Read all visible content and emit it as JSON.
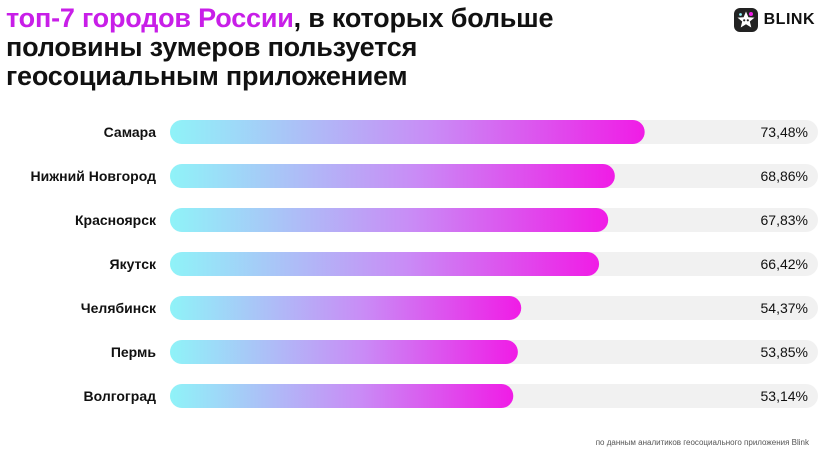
{
  "title": {
    "accent": "топ-7 городов России",
    "rest": ", в которых больше половины зумеров пользуется геосоциальным приложением"
  },
  "brand": {
    "name": "BLINK",
    "logo_icon": "blink-star-logo-icon"
  },
  "colors": {
    "accent": "#c81ee8",
    "bar_start": "#8ff3f8",
    "bar_mid": "#c98cf6",
    "bar_end": "#f01ce6",
    "track": "#f1f1f1"
  },
  "chart_data": {
    "type": "bar",
    "orientation": "horizontal",
    "categories": [
      "Самара",
      "Нижний Новгород",
      "Красноярск",
      "Якутск",
      "Челябинск",
      "Пермь",
      "Волгоград"
    ],
    "values": [
      73.48,
      68.86,
      67.83,
      66.42,
      54.37,
      53.85,
      53.14
    ],
    "value_labels": [
      "73,48%",
      "68,86%",
      "67,83%",
      "66,42%",
      "54,37%",
      "53,85%",
      "53,14%"
    ],
    "xlim": [
      0,
      100
    ],
    "grid": false
  },
  "source": "по данным аналитиков геосоциального приложения Blink"
}
